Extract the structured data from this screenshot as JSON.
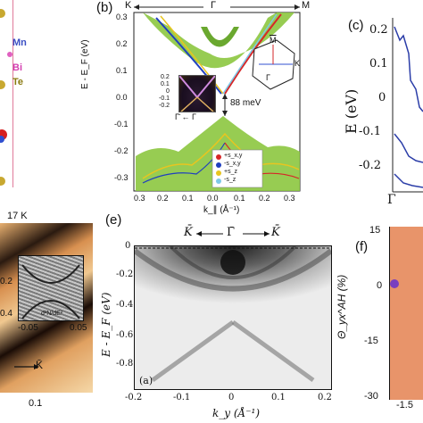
{
  "panels": {
    "a": {
      "elements": [
        {
          "symbol": "Mn",
          "color": "#3b4fc4"
        },
        {
          "symbol": "Bi",
          "color": "#d43fb0"
        },
        {
          "symbol": "Te",
          "color": "#8a7a10"
        }
      ]
    },
    "b": {
      "label": "(b)",
      "ylabel": "E - E_F (eV)",
      "xlabel": "k_∥ (Å⁻¹)",
      "top_k_left": "K",
      "top_gamma": "Γ",
      "top_k_right": "M",
      "gap_label": "88 meV",
      "inset_bz": {
        "m": "M",
        "k": "K",
        "gamma": "Γ"
      },
      "inset_arpes": {
        "ticks": [
          "0.2",
          "0.1",
          "0",
          "-0.1",
          "-0.2"
        ],
        "xlabel": "Γ̄ ← Γ"
      },
      "legend": [
        {
          "text": "+s_x,y",
          "color": "#d62728"
        },
        {
          "text": "-s_x,y",
          "color": "#1f3fbf"
        },
        {
          "text": "+s_z",
          "color": "#e8c520"
        },
        {
          "text": "-s_z",
          "color": "#7ec8e8"
        }
      ],
      "yticks": [
        "0.3",
        "0.2",
        "0.1",
        "0.0",
        "-0.1",
        "-0.2",
        "-0.3"
      ],
      "xticks": [
        "0.3",
        "0.2",
        "0.1",
        "0.0",
        "0.1",
        "0.2",
        "0.3"
      ]
    },
    "c": {
      "label": "(c)",
      "ylabel": "E (eV)",
      "yticks": [
        "0.2",
        "0.1",
        "0",
        "-0.1",
        "-0.2"
      ],
      "xtick": "Γ"
    },
    "d": {
      "temperature": "17 K",
      "inset_label": "d²N/dE²",
      "inset_yticks": [
        "0.2",
        "0.4"
      ],
      "inset_xticks": [
        "-0.05",
        "0.05"
      ],
      "arrow_label": "K̄",
      "xtick": "0.1"
    },
    "e": {
      "label": "(e)",
      "sub_label": "(a)",
      "ylabel": "E - E_F (eV)",
      "xlabel": "k_y (Å⁻¹)",
      "header_k_left": "K̄",
      "header_gamma": "Γ̄",
      "header_k_right": "K̄",
      "yticks": [
        "0",
        "-0.2",
        "-0.4",
        "-0.6",
        "-0.8"
      ],
      "xticks": [
        "-0.2",
        "-0.1",
        "0",
        "0.1",
        "0.2"
      ]
    },
    "f": {
      "label": "(f)",
      "ylabel": "Θ_yx^AH (%)",
      "yticks": [
        "15",
        "0",
        "-15",
        "-30"
      ],
      "xtick": "-1.5"
    }
  }
}
